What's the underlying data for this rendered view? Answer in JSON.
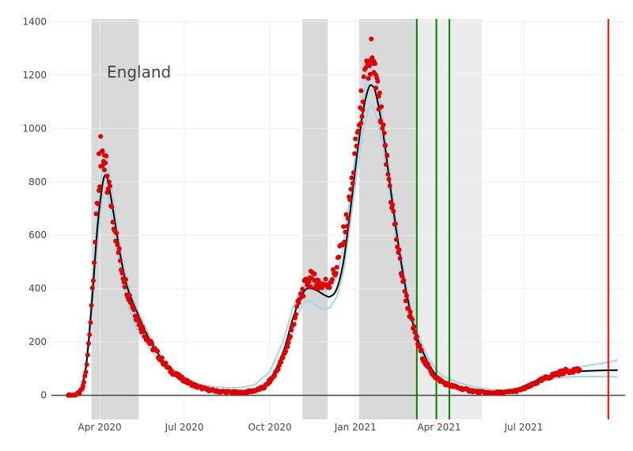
{
  "chart_data": {
    "type": "line",
    "title": "",
    "xlabel": "",
    "ylabel": "",
    "annotation": "England",
    "xlim": [
      "2020-02-09",
      "2021-10-18"
    ],
    "ylim": [
      -90,
      1410
    ],
    "yticks": [
      0,
      200,
      400,
      600,
      800,
      1000,
      1200,
      1400
    ],
    "xticks": [
      {
        "date": "2020-04-01",
        "label": "Apr 2020"
      },
      {
        "date": "2020-07-01",
        "label": "Jul 2020"
      },
      {
        "date": "2020-10-01",
        "label": "Oct 2020"
      },
      {
        "date": "2021-01-01",
        "label": "Jan 2021"
      },
      {
        "date": "2021-04-01",
        "label": "Apr 2021"
      },
      {
        "date": "2021-07-01",
        "label": "Jul 2021"
      }
    ],
    "grid": true,
    "shaded_periods": [
      {
        "start": "2020-03-23",
        "end": "2020-05-13",
        "color": "#d9d9d9"
      },
      {
        "start": "2020-11-05",
        "end": "2020-12-02",
        "color": "#d9d9d9"
      },
      {
        "start": "2021-01-05",
        "end": "2021-03-08",
        "color": "#d9d9d9"
      },
      {
        "start": "2021-03-08",
        "end": "2021-05-17",
        "color": "#ececec"
      }
    ],
    "vertical_lines": [
      {
        "date": "2021-03-08",
        "color": "#008000"
      },
      {
        "date": "2021-03-29",
        "color": "#008000"
      },
      {
        "date": "2021-04-12",
        "color": "#008000"
      },
      {
        "date": "2021-09-30",
        "color": "#ff0000"
      }
    ],
    "colors": {
      "model": "#000000",
      "band": "#a8d4e6",
      "observed": "#e00000",
      "zero_line": "#444444",
      "grid": "#eeeeee"
    },
    "model_curve": [
      [
        "2020-03-01",
        0
      ],
      [
        "2020-03-10",
        15
      ],
      [
        "2020-03-16",
        80
      ],
      [
        "2020-03-20",
        200
      ],
      [
        "2020-03-25",
        420
      ],
      [
        "2020-03-30",
        650
      ],
      [
        "2020-04-04",
        790
      ],
      [
        "2020-04-07",
        825
      ],
      [
        "2020-04-10",
        800
      ],
      [
        "2020-04-15",
        700
      ],
      [
        "2020-04-20",
        590
      ],
      [
        "2020-04-25",
        490
      ],
      [
        "2020-05-01",
        400
      ],
      [
        "2020-05-10",
        320
      ],
      [
        "2020-05-20",
        240
      ],
      [
        "2020-06-01",
        165
      ],
      [
        "2020-06-15",
        100
      ],
      [
        "2020-07-01",
        60
      ],
      [
        "2020-07-15",
        35
      ],
      [
        "2020-08-01",
        20
      ],
      [
        "2020-08-20",
        15
      ],
      [
        "2020-09-01",
        15
      ],
      [
        "2020-09-15",
        20
      ],
      [
        "2020-10-01",
        60
      ],
      [
        "2020-10-15",
        160
      ],
      [
        "2020-10-25",
        280
      ],
      [
        "2020-11-01",
        350
      ],
      [
        "2020-11-08",
        395
      ],
      [
        "2020-11-15",
        400
      ],
      [
        "2020-11-22",
        390
      ],
      [
        "2020-11-29",
        375
      ],
      [
        "2020-12-05",
        370
      ],
      [
        "2020-12-12",
        400
      ],
      [
        "2020-12-19",
        500
      ],
      [
        "2020-12-26",
        680
      ],
      [
        "2021-01-02",
        880
      ],
      [
        "2021-01-09",
        1060
      ],
      [
        "2021-01-15",
        1150
      ],
      [
        "2021-01-19",
        1160
      ],
      [
        "2021-01-23",
        1130
      ],
      [
        "2021-01-30",
        1000
      ],
      [
        "2021-02-06",
        820
      ],
      [
        "2021-02-13",
        640
      ],
      [
        "2021-02-20",
        480
      ],
      [
        "2021-02-28",
        330
      ],
      [
        "2021-03-07",
        230
      ],
      [
        "2021-03-15",
        160
      ],
      [
        "2021-03-22",
        110
      ],
      [
        "2021-03-29",
        75
      ],
      [
        "2021-04-06",
        50
      ],
      [
        "2021-04-20",
        30
      ],
      [
        "2021-05-05",
        18
      ],
      [
        "2021-05-20",
        12
      ],
      [
        "2021-06-01",
        12
      ],
      [
        "2021-06-15",
        18
      ],
      [
        "2021-06-25",
        25
      ],
      [
        "2021-07-05",
        40
      ],
      [
        "2021-07-15",
        55
      ],
      [
        "2021-07-25",
        68
      ],
      [
        "2021-08-05",
        78
      ],
      [
        "2021-08-15",
        84
      ],
      [
        "2021-08-25",
        88
      ],
      [
        "2021-09-05",
        91
      ],
      [
        "2021-09-20",
        93
      ],
      [
        "2021-10-01",
        94
      ],
      [
        "2021-10-10",
        94
      ]
    ],
    "band_upper": [
      [
        "2020-03-01",
        0
      ],
      [
        "2020-03-10",
        20
      ],
      [
        "2020-03-16",
        90
      ],
      [
        "2020-03-20",
        220
      ],
      [
        "2020-03-25",
        460
      ],
      [
        "2020-03-30",
        700
      ],
      [
        "2020-04-04",
        860
      ],
      [
        "2020-04-07",
        895
      ],
      [
        "2020-04-10",
        870
      ],
      [
        "2020-04-15",
        750
      ],
      [
        "2020-04-20",
        625
      ],
      [
        "2020-04-25",
        515
      ],
      [
        "2020-05-01",
        420
      ],
      [
        "2020-05-10",
        335
      ],
      [
        "2020-05-20",
        255
      ],
      [
        "2020-06-01",
        175
      ],
      [
        "2020-06-15",
        110
      ],
      [
        "2020-07-01",
        70
      ],
      [
        "2020-07-15",
        45
      ],
      [
        "2020-08-01",
        32
      ],
      [
        "2020-08-20",
        28
      ],
      [
        "2020-09-01",
        30
      ],
      [
        "2020-09-15",
        40
      ],
      [
        "2020-10-01",
        90
      ],
      [
        "2020-10-15",
        200
      ],
      [
        "2020-10-25",
        320
      ],
      [
        "2020-11-01",
        380
      ],
      [
        "2020-11-08",
        410
      ],
      [
        "2020-11-15",
        415
      ],
      [
        "2020-11-22",
        405
      ],
      [
        "2020-11-29",
        395
      ],
      [
        "2020-12-05",
        395
      ],
      [
        "2020-12-12",
        440
      ],
      [
        "2020-12-19",
        560
      ],
      [
        "2020-12-26",
        740
      ],
      [
        "2021-01-02",
        940
      ],
      [
        "2021-01-09",
        1120
      ],
      [
        "2021-01-15",
        1210
      ],
      [
        "2021-01-19",
        1230
      ],
      [
        "2021-01-23",
        1200
      ],
      [
        "2021-01-30",
        1050
      ],
      [
        "2021-02-06",
        860
      ],
      [
        "2021-02-13",
        670
      ],
      [
        "2021-02-20",
        505
      ],
      [
        "2021-02-28",
        350
      ],
      [
        "2021-03-07",
        250
      ],
      [
        "2021-03-15",
        180
      ],
      [
        "2021-03-22",
        130
      ],
      [
        "2021-03-29",
        95
      ],
      [
        "2021-04-06",
        70
      ],
      [
        "2021-04-20",
        50
      ],
      [
        "2021-05-05",
        35
      ],
      [
        "2021-05-20",
        25
      ],
      [
        "2021-06-01",
        20
      ],
      [
        "2021-06-15",
        22
      ],
      [
        "2021-06-25",
        28
      ],
      [
        "2021-07-05",
        42
      ],
      [
        "2021-07-15",
        58
      ],
      [
        "2021-07-25",
        72
      ],
      [
        "2021-08-05",
        85
      ],
      [
        "2021-08-15",
        95
      ],
      [
        "2021-08-25",
        103
      ],
      [
        "2021-09-05",
        110
      ],
      [
        "2021-09-20",
        118
      ],
      [
        "2021-10-01",
        125
      ],
      [
        "2021-10-10",
        133
      ]
    ],
    "band_lower": [
      [
        "2020-03-01",
        0
      ],
      [
        "2020-03-10",
        10
      ],
      [
        "2020-03-16",
        70
      ],
      [
        "2020-03-20",
        180
      ],
      [
        "2020-03-25",
        380
      ],
      [
        "2020-03-30",
        600
      ],
      [
        "2020-04-04",
        740
      ],
      [
        "2020-04-07",
        770
      ],
      [
        "2020-04-10",
        740
      ],
      [
        "2020-04-15",
        640
      ],
      [
        "2020-04-20",
        540
      ],
      [
        "2020-04-25",
        440
      ],
      [
        "2020-05-01",
        340
      ],
      [
        "2020-05-10",
        250
      ],
      [
        "2020-05-20",
        200
      ],
      [
        "2020-06-01",
        140
      ],
      [
        "2020-06-15",
        85
      ],
      [
        "2020-07-01",
        50
      ],
      [
        "2020-07-15",
        28
      ],
      [
        "2020-08-01",
        15
      ],
      [
        "2020-08-20",
        10
      ],
      [
        "2020-09-01",
        10
      ],
      [
        "2020-09-15",
        12
      ],
      [
        "2020-10-01",
        40
      ],
      [
        "2020-10-15",
        130
      ],
      [
        "2020-10-25",
        240
      ],
      [
        "2020-11-01",
        310
      ],
      [
        "2020-11-08",
        355
      ],
      [
        "2020-11-15",
        350
      ],
      [
        "2020-11-22",
        330
      ],
      [
        "2020-11-29",
        322
      ],
      [
        "2020-12-05",
        330
      ],
      [
        "2020-12-12",
        370
      ],
      [
        "2020-12-19",
        460
      ],
      [
        "2020-12-26",
        630
      ],
      [
        "2021-01-02",
        820
      ],
      [
        "2021-01-09",
        990
      ],
      [
        "2021-01-15",
        1075
      ],
      [
        "2021-01-19",
        1085
      ],
      [
        "2021-01-23",
        1055
      ],
      [
        "2021-01-30",
        940
      ],
      [
        "2021-02-06",
        770
      ],
      [
        "2021-02-13",
        600
      ],
      [
        "2021-02-20",
        450
      ],
      [
        "2021-02-28",
        310
      ],
      [
        "2021-03-07",
        210
      ],
      [
        "2021-03-15",
        140
      ],
      [
        "2021-03-22",
        95
      ],
      [
        "2021-03-29",
        62
      ],
      [
        "2021-04-06",
        40
      ],
      [
        "2021-04-20",
        22
      ],
      [
        "2021-05-05",
        12
      ],
      [
        "2021-05-20",
        8
      ],
      [
        "2021-06-01",
        8
      ],
      [
        "2021-06-15",
        14
      ],
      [
        "2021-06-25",
        20
      ],
      [
        "2021-07-05",
        34
      ],
      [
        "2021-07-15",
        48
      ],
      [
        "2021-07-25",
        58
      ],
      [
        "2021-08-05",
        64
      ],
      [
        "2021-08-15",
        68
      ],
      [
        "2021-08-25",
        70
      ],
      [
        "2021-09-05",
        70
      ],
      [
        "2021-09-20",
        70
      ],
      [
        "2021-10-01",
        70
      ],
      [
        "2021-10-10",
        69
      ]
    ],
    "observed_anchors": [
      [
        "2020-02-27",
        0
      ],
      [
        "2020-03-05",
        1
      ],
      [
        "2020-03-10",
        8
      ],
      [
        "2020-03-14",
        30
      ],
      [
        "2020-03-18",
        110
      ],
      [
        "2020-03-21",
        230
      ],
      [
        "2020-03-25",
        460
      ],
      [
        "2020-03-29",
        700
      ],
      [
        "2020-04-02",
        850
      ],
      [
        "2020-04-05",
        880
      ],
      [
        "2020-04-08",
        850
      ],
      [
        "2020-04-11",
        780
      ],
      [
        "2020-04-15",
        680
      ],
      [
        "2020-04-20",
        560
      ],
      [
        "2020-04-25",
        470
      ],
      [
        "2020-05-01",
        390
      ],
      [
        "2020-05-08",
        320
      ],
      [
        "2020-05-15",
        260
      ],
      [
        "2020-05-25",
        195
      ],
      [
        "2020-06-05",
        140
      ],
      [
        "2020-06-15",
        95
      ],
      [
        "2020-06-25",
        70
      ],
      [
        "2020-07-05",
        48
      ],
      [
        "2020-07-15",
        32
      ],
      [
        "2020-07-25",
        22
      ],
      [
        "2020-08-05",
        15
      ],
      [
        "2020-08-20",
        12
      ],
      [
        "2020-09-01",
        10
      ],
      [
        "2020-09-15",
        18
      ],
      [
        "2020-09-25",
        30
      ],
      [
        "2020-10-05",
        70
      ],
      [
        "2020-10-15",
        140
      ],
      [
        "2020-10-22",
        210
      ],
      [
        "2020-10-29",
        310
      ],
      [
        "2020-11-05",
        390
      ],
      [
        "2020-11-12",
        435
      ],
      [
        "2020-11-19",
        430
      ],
      [
        "2020-11-26",
        415
      ],
      [
        "2020-12-03",
        420
      ],
      [
        "2020-12-10",
        460
      ],
      [
        "2020-12-17",
        560
      ],
      [
        "2020-12-24",
        680
      ],
      [
        "2020-12-31",
        880
      ],
      [
        "2021-01-06",
        1060
      ],
      [
        "2021-01-12",
        1180
      ],
      [
        "2021-01-17",
        1230
      ],
      [
        "2021-01-20",
        1220
      ],
      [
        "2021-01-24",
        1150
      ],
      [
        "2021-01-29",
        1020
      ],
      [
        "2021-02-04",
        860
      ],
      [
        "2021-02-10",
        700
      ],
      [
        "2021-02-16",
        540
      ],
      [
        "2021-02-23",
        390
      ],
      [
        "2021-03-02",
        280
      ],
      [
        "2021-03-09",
        195
      ],
      [
        "2021-03-16",
        130
      ],
      [
        "2021-03-23",
        90
      ],
      [
        "2021-03-30",
        62
      ],
      [
        "2021-04-10",
        40
      ],
      [
        "2021-04-25",
        25
      ],
      [
        "2021-05-10",
        14
      ],
      [
        "2021-05-25",
        9
      ],
      [
        "2021-06-10",
        10
      ],
      [
        "2021-06-25",
        18
      ],
      [
        "2021-07-05",
        30
      ],
      [
        "2021-07-15",
        48
      ],
      [
        "2021-07-25",
        65
      ],
      [
        "2021-08-05",
        80
      ],
      [
        "2021-08-15",
        90
      ],
      [
        "2021-08-25",
        95
      ]
    ],
    "observed_series": {
      "start": "2020-02-27",
      "end": "2021-08-30",
      "step_days": 1
    },
    "observed_outliers": [
      [
        "2020-04-02",
        970
      ],
      [
        "2020-03-31",
        905
      ],
      [
        "2020-04-04",
        860
      ],
      [
        "2020-04-06",
        845
      ],
      [
        "2020-04-09",
        760
      ],
      [
        "2020-11-10",
        425
      ],
      [
        "2020-11-14",
        465
      ],
      [
        "2020-11-18",
        455
      ],
      [
        "2020-11-22",
        400
      ],
      [
        "2021-01-18",
        1335
      ],
      [
        "2021-01-16",
        1250
      ],
      [
        "2021-01-19",
        1265
      ],
      [
        "2021-01-21",
        1210
      ],
      [
        "2021-01-23",
        1200
      ],
      [
        "2021-01-26",
        1120
      ],
      [
        "2021-01-28",
        1030
      ],
      [
        "2021-02-02",
        935
      ],
      [
        "2021-02-04",
        900
      ],
      [
        "2021-01-07",
        1020
      ],
      [
        "2021-01-09",
        1100
      ]
    ]
  }
}
